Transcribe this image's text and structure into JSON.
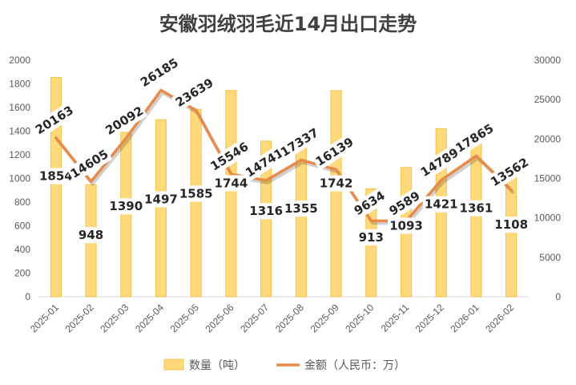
{
  "chart_data": {
    "type": "bar+line",
    "title": "安徽羽绒羽毛近14月出口走势",
    "categories": [
      "2025-01",
      "2025-02",
      "2025-03",
      "2025-04",
      "2025-05",
      "2025-06",
      "2025-07",
      "2025-08",
      "2025-09",
      "2025-10",
      "2025-11",
      "2025-12",
      "2026-01",
      "2026-02"
    ],
    "series": [
      {
        "name": "数量（吨）",
        "type": "bar",
        "axis": "left",
        "color": "#FFD97A",
        "values": [
          1854,
          948,
          1390,
          1497,
          1585,
          1744,
          1316,
          1355,
          1742,
          913,
          1093,
          1421,
          1361,
          1108
        ]
      },
      {
        "name": "金额（人民币：万）",
        "type": "line",
        "axis": "right",
        "color": "#E88B4A",
        "values": [
          20163,
          14605,
          20092,
          26185,
          23639,
          15546,
          14741,
          17337,
          16139,
          9634,
          9589,
          14789,
          17865,
          13562
        ]
      }
    ],
    "y_left": {
      "min": 0,
      "max": 2000,
      "step": 200
    },
    "y_right": {
      "min": 0,
      "max": 30000,
      "step": 5000
    },
    "grid": false,
    "legend": "bottom"
  }
}
